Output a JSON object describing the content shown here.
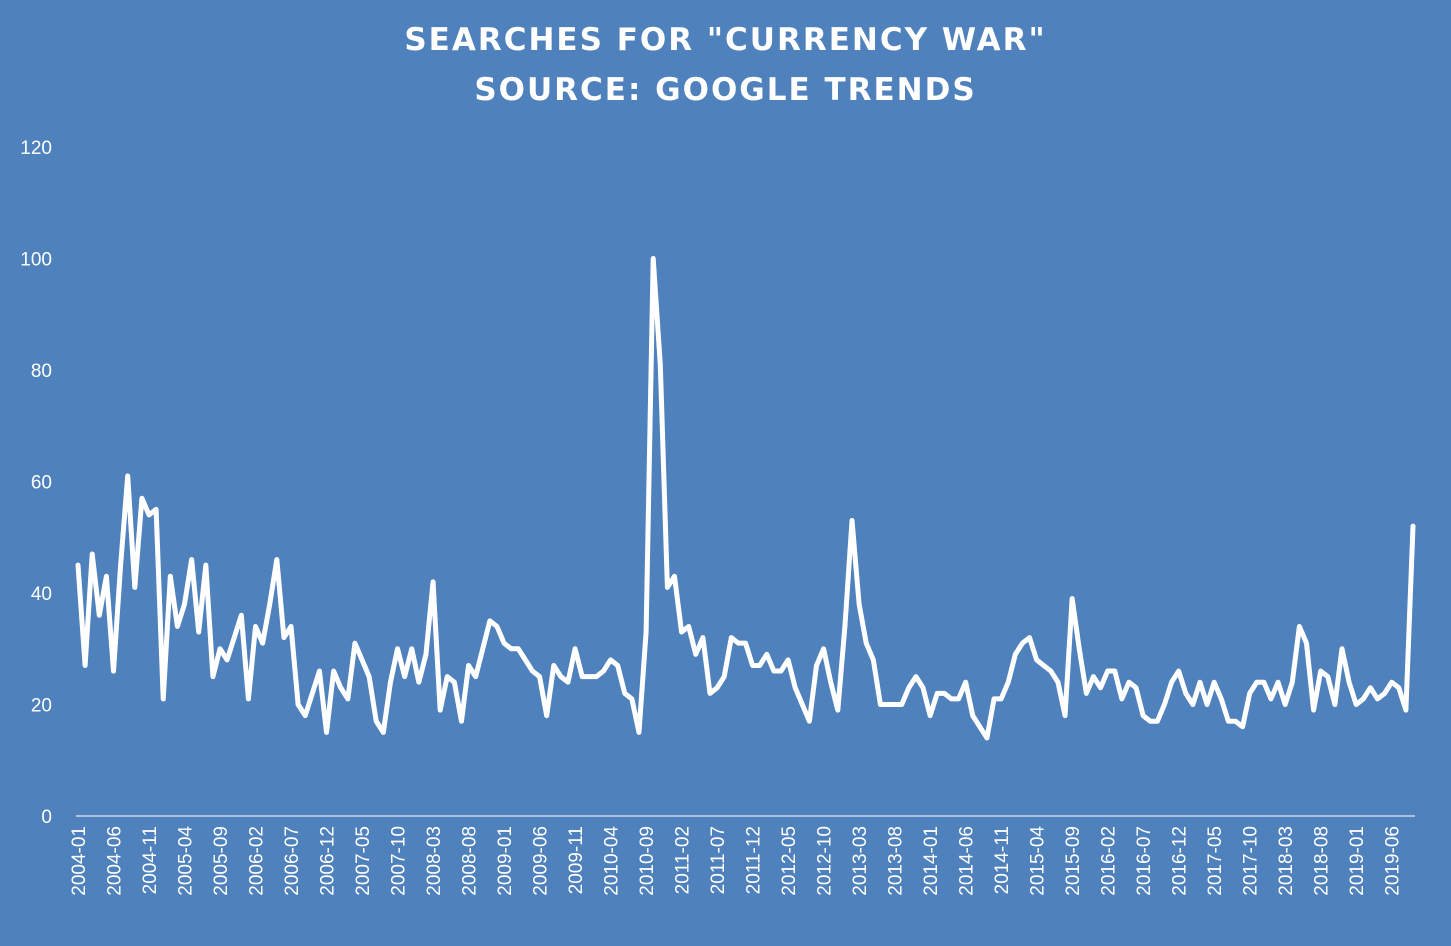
{
  "chart_data": {
    "type": "area",
    "title": "SEARCHES FOR \"CURRENCY WAR\"",
    "subtitle": "SOURCE: GOOGLE TRENDS",
    "xlabel": "",
    "ylabel": "",
    "ylim": [
      0,
      120
    ],
    "yticks": [
      0,
      20,
      40,
      60,
      80,
      100,
      120
    ],
    "grid": false,
    "legend": "none",
    "x_start": "2004-01",
    "x_end": "2019-09",
    "xtick_labels": [
      "2004-01",
      "2004-06",
      "2004-11",
      "2005-04",
      "2005-09",
      "2006-02",
      "2006-07",
      "2006-12",
      "2007-05",
      "2007-10",
      "2008-03",
      "2008-08",
      "2009-01",
      "2009-06",
      "2009-11",
      "2010-04",
      "2010-09",
      "2011-02",
      "2011-07",
      "2011-12",
      "2012-05",
      "2012-10",
      "2013-03",
      "2013-08",
      "2014-01",
      "2014-06",
      "2014-11",
      "2015-04",
      "2015-09",
      "2016-02",
      "2016-07",
      "2016-12",
      "2017-05",
      "2017-10",
      "2018-03",
      "2018-08",
      "2019-01",
      "2019-06"
    ],
    "values": [
      45,
      27,
      47,
      36,
      43,
      26,
      45,
      61,
      41,
      57,
      54,
      55,
      21,
      43,
      34,
      38,
      46,
      33,
      45,
      25,
      30,
      28,
      32,
      36,
      21,
      34,
      31,
      38,
      46,
      32,
      34,
      20,
      18,
      22,
      26,
      15,
      26,
      23,
      21,
      31,
      28,
      25,
      17,
      15,
      24,
      30,
      25,
      30,
      24,
      29,
      42,
      19,
      25,
      24,
      17,
      27,
      25,
      30,
      35,
      34,
      31,
      30,
      30,
      28,
      26,
      25,
      18,
      27,
      25,
      24,
      30,
      25,
      25,
      25,
      26,
      28,
      27,
      22,
      21,
      15,
      33,
      100,
      81,
      41,
      43,
      33,
      34,
      29,
      32,
      22,
      23,
      25,
      32,
      31,
      31,
      27,
      27,
      29,
      26,
      26,
      28,
      23,
      20,
      17,
      27,
      30,
      24,
      19,
      34,
      53,
      38,
      31,
      28,
      20,
      20,
      20,
      20,
      23,
      25,
      23,
      18,
      22,
      22,
      21,
      21,
      24,
      18,
      16,
      14,
      21,
      21,
      24,
      29,
      31,
      32,
      28,
      27,
      26,
      24,
      18,
      39,
      30,
      22,
      25,
      23,
      26,
      26,
      21,
      24,
      23,
      18,
      17,
      17,
      20,
      24,
      26,
      22,
      20,
      24,
      20,
      24,
      21,
      17,
      17,
      16,
      22,
      24,
      24,
      21,
      24,
      20,
      24,
      34,
      31,
      19,
      26,
      25,
      20,
      30,
      24,
      20,
      21,
      23,
      21,
      22,
      24,
      23,
      19,
      52
    ],
    "colors": {
      "background": "#4f81bd",
      "line": "#ffffff",
      "fill": "#ffffff",
      "text": "#ffffff"
    }
  }
}
